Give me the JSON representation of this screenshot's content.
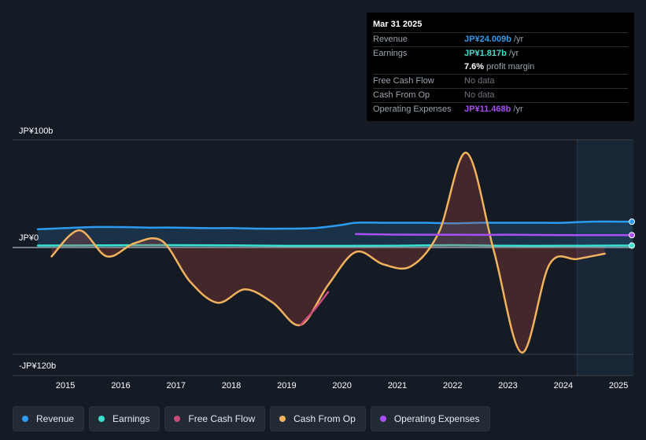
{
  "chart_data": {
    "type": "line",
    "y_unit_labels": [
      "JP¥100b",
      "JP¥0",
      "-JP¥120b"
    ],
    "y_ticks": [
      100,
      0,
      -120
    ],
    "ylim": [
      -130,
      100
    ],
    "xlim": [
      2014.5,
      2025.25
    ],
    "x_ticks": [
      "2015",
      "2016",
      "2017",
      "2018",
      "2019",
      "2020",
      "2021",
      "2022",
      "2023",
      "2024",
      "2025"
    ],
    "x_tick_values": [
      2015,
      2016,
      2017,
      2018,
      2019,
      2020,
      2021,
      2022,
      2023,
      2024,
      2025
    ],
    "forecast_start": 2024.25,
    "series": [
      {
        "name": "Revenue",
        "color": "#2d9cf0",
        "fill": true,
        "x": [
          2014.5,
          2015,
          2015.5,
          2016,
          2016.5,
          2017,
          2017.5,
          2018,
          2018.5,
          2019,
          2019.5,
          2020,
          2020.25,
          2020.75,
          2021,
          2021.5,
          2022,
          2022.5,
          2023,
          2023.5,
          2024,
          2024.5,
          2025,
          2025.25
        ],
        "y": [
          17,
          18,
          19,
          19,
          18.5,
          18.5,
          18,
          18,
          17.5,
          17.5,
          18,
          21,
          23,
          23,
          23,
          23,
          22.5,
          23,
          23,
          23,
          23,
          24,
          24,
          24
        ]
      },
      {
        "name": "Earnings",
        "color": "#3ee0cf",
        "fill": true,
        "x": [
          2014.5,
          2015,
          2016,
          2017,
          2018,
          2019,
          2020,
          2021,
          2022,
          2023,
          2024,
          2025,
          2025.25
        ],
        "y": [
          1.8,
          1.9,
          2.1,
          2.2,
          2.0,
          1.5,
          1.5,
          1.7,
          2.2,
          1.6,
          1.6,
          1.8,
          1.8
        ]
      },
      {
        "name": "Free Cash Flow",
        "color": "#c94b7c",
        "fill": false,
        "x": [
          2019.25,
          2019.5,
          2019.75
        ],
        "y": [
          -87,
          -70,
          -50
        ]
      },
      {
        "name": "Cash From Op",
        "color": "#f2b35e",
        "fill": true,
        "x": [
          2014.75,
          2015.25,
          2015.75,
          2016.25,
          2016.75,
          2017.25,
          2017.75,
          2018.25,
          2018.75,
          2019.25,
          2019.75,
          2020.25,
          2020.75,
          2021.25,
          2021.75,
          2022.25,
          2022.75,
          2023.25,
          2023.75,
          2024.25,
          2024.75
        ],
        "y": [
          -10,
          16,
          -10,
          4,
          6,
          -38,
          -62,
          -47,
          -62,
          -87,
          -42,
          -5,
          -19,
          -21,
          14,
          88,
          -5,
          -118,
          -19,
          -13,
          -7
        ]
      },
      {
        "name": "Operating Expenses",
        "color": "#a84ff5",
        "fill": false,
        "x": [
          2020.25,
          2021,
          2022,
          2023,
          2024,
          2025,
          2025.25
        ],
        "y": [
          12.5,
          12.0,
          11.8,
          11.8,
          11.5,
          11.5,
          11.5
        ]
      }
    ],
    "grid": true,
    "legend_position": "bottom"
  },
  "tooltip": {
    "date": "Mar 31 2025",
    "rows": [
      {
        "label": "Revenue",
        "value": "JP¥24.009b",
        "suffix": " /yr",
        "color": "#2d9cf0"
      },
      {
        "label": "Earnings",
        "value": "JP¥1.817b",
        "suffix": " /yr",
        "color": "#3ee0cf"
      },
      {
        "label": "",
        "value": "7.6%",
        "suffix": " profit margin",
        "color": "#ffffff"
      },
      {
        "label": "Free Cash Flow",
        "value": "No data",
        "suffix": "",
        "color": "#6c747e"
      },
      {
        "label": "Cash From Op",
        "value": "No data",
        "suffix": "",
        "color": "#6c747e"
      },
      {
        "label": "Operating Expenses",
        "value": "JP¥11.468b",
        "suffix": " /yr",
        "color": "#a84ff5"
      }
    ]
  },
  "legend": [
    {
      "label": "Revenue",
      "color": "#2d9cf0"
    },
    {
      "label": "Earnings",
      "color": "#3ee0cf"
    },
    {
      "label": "Free Cash Flow",
      "color": "#c94b7c"
    },
    {
      "label": "Cash From Op",
      "color": "#f2b35e"
    },
    {
      "label": "Operating Expenses",
      "color": "#a84ff5"
    }
  ]
}
